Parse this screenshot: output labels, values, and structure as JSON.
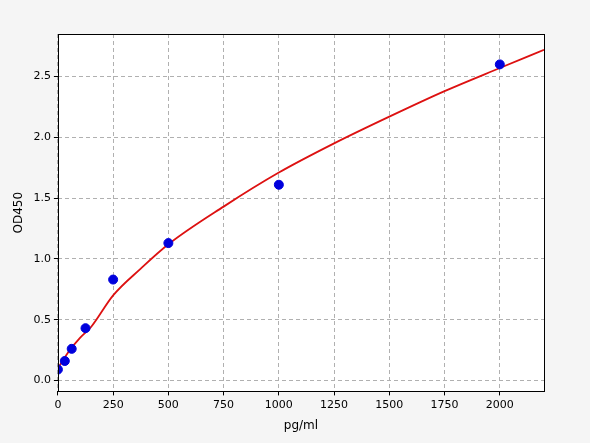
{
  "chart_data": {
    "type": "scatter",
    "x_label": "pg/ml",
    "y_label": "OD450",
    "xlim": [
      0,
      2200
    ],
    "ylim": [
      -0.09,
      2.85
    ],
    "xticks": [
      0,
      250,
      500,
      750,
      1000,
      1250,
      1500,
      1750,
      2000
    ],
    "yticks": [
      {
        "value": 0,
        "label": "0.0"
      },
      0.5,
      {
        "value": 1,
        "label": "1.0"
      },
      1.5,
      {
        "value": 2,
        "label": "2.0"
      },
      2.5
    ],
    "grid": true,
    "series": [
      {
        "type": "scatter",
        "color": "#0000dd",
        "marker": "circle",
        "x": [
          0,
          31.25,
          62.5,
          125,
          250,
          500,
          1000,
          2000
        ],
        "values": [
          0.09,
          0.16,
          0.26,
          0.43,
          0.83,
          1.13,
          1.61,
          2.6
        ]
      },
      {
        "type": "line",
        "color": "#dd1111",
        "line_style": "solid",
        "x": [
          0,
          50,
          100,
          150,
          250,
          375,
          500,
          750,
          1000,
          1250,
          1500,
          1750,
          2000,
          2200
        ],
        "values": [
          0.1,
          0.24,
          0.35,
          0.44,
          0.7,
          0.92,
          1.12,
          1.43,
          1.71,
          1.95,
          2.17,
          2.38,
          2.57,
          2.72
        ]
      }
    ]
  }
}
